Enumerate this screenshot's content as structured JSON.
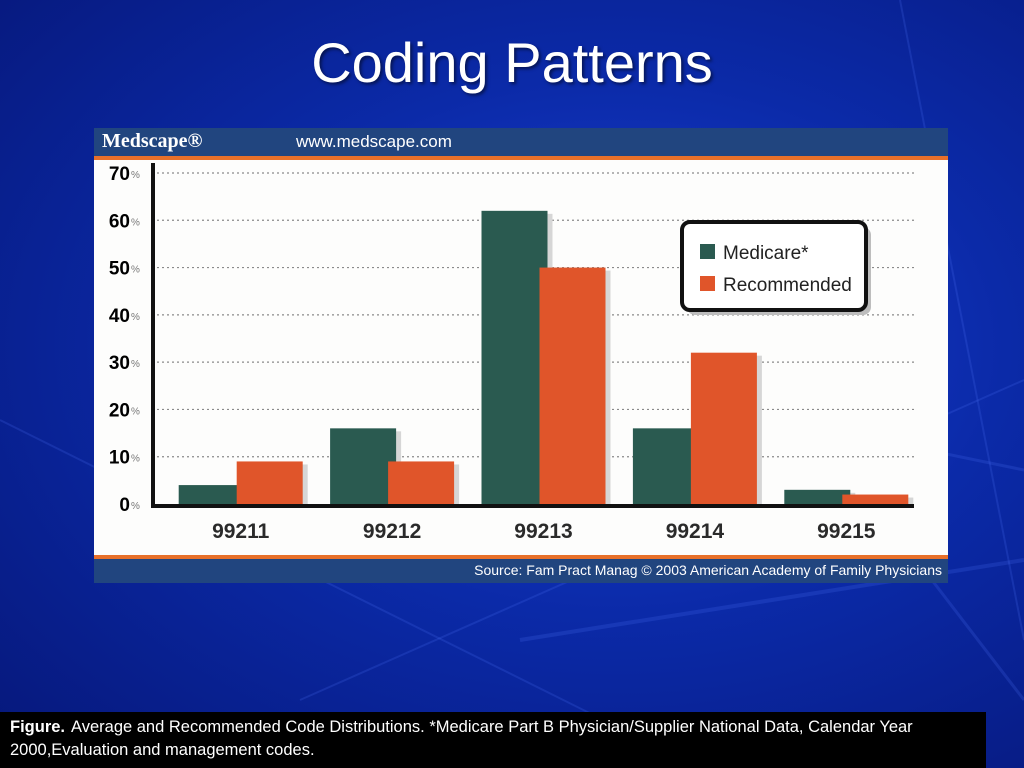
{
  "slide": {
    "title": "Coding Patterns"
  },
  "panel": {
    "brand": "Medscape®",
    "url": "www.medscape.com",
    "source": "Source: Fam Pract Manag © 2003 American Academy of Family Physicians"
  },
  "caption": {
    "label": "Figure.",
    "text": "Average and Recommended Code Distributions. *Medicare Part B Physician/Supplier National Data, Calendar Year 2000,Evaluation and management codes."
  },
  "colors": {
    "medicare": "#2a5a50",
    "recommended": "#e0552a"
  },
  "chart_data": {
    "type": "bar",
    "categories": [
      "99211",
      "99212",
      "99213",
      "99214",
      "99215"
    ],
    "series": [
      {
        "name": "Medicare*",
        "values": [
          4,
          16,
          62,
          16,
          3
        ]
      },
      {
        "name": "Recommended",
        "values": [
          9,
          9,
          50,
          32,
          2
        ]
      }
    ],
    "yticks": [
      "0",
      "10",
      "20",
      "30",
      "40",
      "50",
      "60",
      "70"
    ],
    "tick_suffix": "%",
    "ylim": [
      0,
      70
    ],
    "grid": true,
    "legend_position": "top-right"
  }
}
